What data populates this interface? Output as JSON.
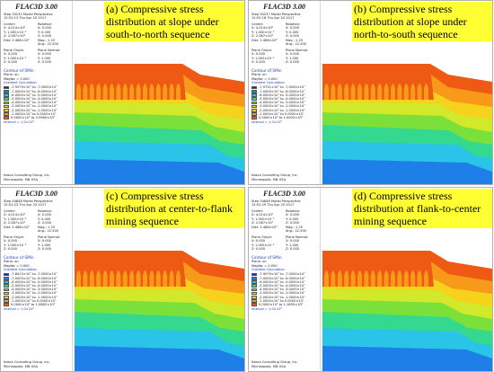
{
  "app_title": "FLAC3D 3.00",
  "common": {
    "view_type": "Model Perspective",
    "center_label": "Center:",
    "rotation_label": "Rotation:",
    "center_x": "X: 4.014×10²",
    "center_y": "Y: 1.000×10⁻¹",
    "center_z": "Z: 2.087×10²",
    "rot_x": "X: 0.000",
    "rot_y": "Y: 0.000",
    "rot_z": "Z: 0.000",
    "dist": "Dist: 2.486×10³",
    "mag": "Mag.: 1.25",
    "ang": "Ang.: 22.500",
    "plane_origin_label": "Plane Origin:",
    "plane_normal_label": "Plane Normal:",
    "po_x": "X: 0.000",
    "po_y": "Y: 1.000×10⁻¹",
    "po_z": "Z: 0.000",
    "pn_x": "X: 0.000",
    "pn_y": "Y: 1.000",
    "pn_z": "Z: 0.000",
    "contour_title": "Contour of SMin",
    "plane_on": "Plane: on",
    "magfac": "Magfac = 0.000",
    "gradient": "Gradient Calculation",
    "interval": "Interval = 1.0×10⁶",
    "company": "Itasca Consulting Group, Inc.",
    "city": "Minneapolis, MN  USA"
  },
  "legend_colors": [
    "#1a20c8",
    "#1f7fe8",
    "#29c4e8",
    "#34d98f",
    "#7ce03a",
    "#d2e82a",
    "#f7d21c",
    "#f79a1a",
    "#ee5a14"
  ],
  "panels": [
    {
      "step": "Step 50231  Model Perspective",
      "time": "15:52:13 Thu Apr 20 2017",
      "caption": "(a) Compressive stress distribution at slope under south-to-north sequence",
      "legend": [
        "-7.5079×10⁷ to -7.0000×10⁷",
        "-7.0000×10⁷ to -6.0000×10⁷",
        "-6.0000×10⁷ to -5.0000×10⁷",
        "-5.0000×10⁷ to -4.0000×10⁷",
        "-4.0000×10⁷ to -3.0000×10⁷",
        "-3.0000×10⁷ to -2.0000×10⁷",
        "-2.0000×10⁷ to -1.0000×10⁷",
        "-1.0000×10⁷ to 0.0000×10⁰",
        "0.0000×10⁰ to 3.5980×10⁵"
      ]
    },
    {
      "step": "Step 50237  Model Perspective",
      "time": "15:52:18 Thu Apr 20 2017",
      "caption": "(b) Compressive stress distribution at slope under north-to-south sequence",
      "legend": [
        "-7.9731×10⁷ to -7.0000×10⁷",
        "-7.0000×10⁷ to -6.0000×10⁷",
        "-6.0000×10⁷ to -5.0000×10⁷",
        "-5.0000×10⁷ to -4.0000×10⁷",
        "-4.0000×10⁷ to -3.0000×10⁷",
        "-3.0000×10⁷ to -2.0000×10⁷",
        "-2.0000×10⁷ to -1.0000×10⁷",
        "-1.0000×10⁷ to 0.0000×10⁰",
        "0.0000×10⁰ to 1.0000×10⁵"
      ]
    },
    {
      "step": "Step 54848  Model Perspective",
      "time": "15:52:23 Thu Apr 20 2017",
      "caption": "(c) Compressive stress distribution at center-to-flank mining sequence",
      "legend": [
        "-7.8413×10⁷ to -7.0000×10⁷",
        "-7.0000×10⁷ to -6.0000×10⁷",
        "-6.0000×10⁷ to -5.0000×10⁷",
        "-5.0000×10⁷ to -4.0000×10⁷",
        "-4.0000×10⁷ to -3.0000×10⁷",
        "-3.0000×10⁷ to -2.0000×10⁷",
        "-2.0000×10⁷ to -1.0000×10⁷",
        "-1.0000×10⁷ to 0.0000×10⁰",
        "0.0000×10⁰ to 1.0882×10⁵"
      ]
    },
    {
      "step": "Step 54848  Model Perspective",
      "time": "15:52:29 Thu Apr 20 2017",
      "caption": "(d) Compressive stress distribution at flank-to-center mining sequence",
      "legend": [
        "-7.9079×10⁷ to -7.0000×10⁷",
        "-7.0000×10⁷ to -6.0000×10⁷",
        "-6.0000×10⁷ to -5.0000×10⁷",
        "-5.0000×10⁷ to -4.0000×10⁷",
        "-4.0000×10⁷ to -3.0000×10⁷",
        "-3.0000×10⁷ to -2.0000×10⁷",
        "-2.0000×10⁷ to -1.0000×10⁷",
        "-1.0000×10⁷ to 0.0000×10⁰",
        "0.0000×10⁰ to 1.1895×10⁵"
      ]
    }
  ]
}
